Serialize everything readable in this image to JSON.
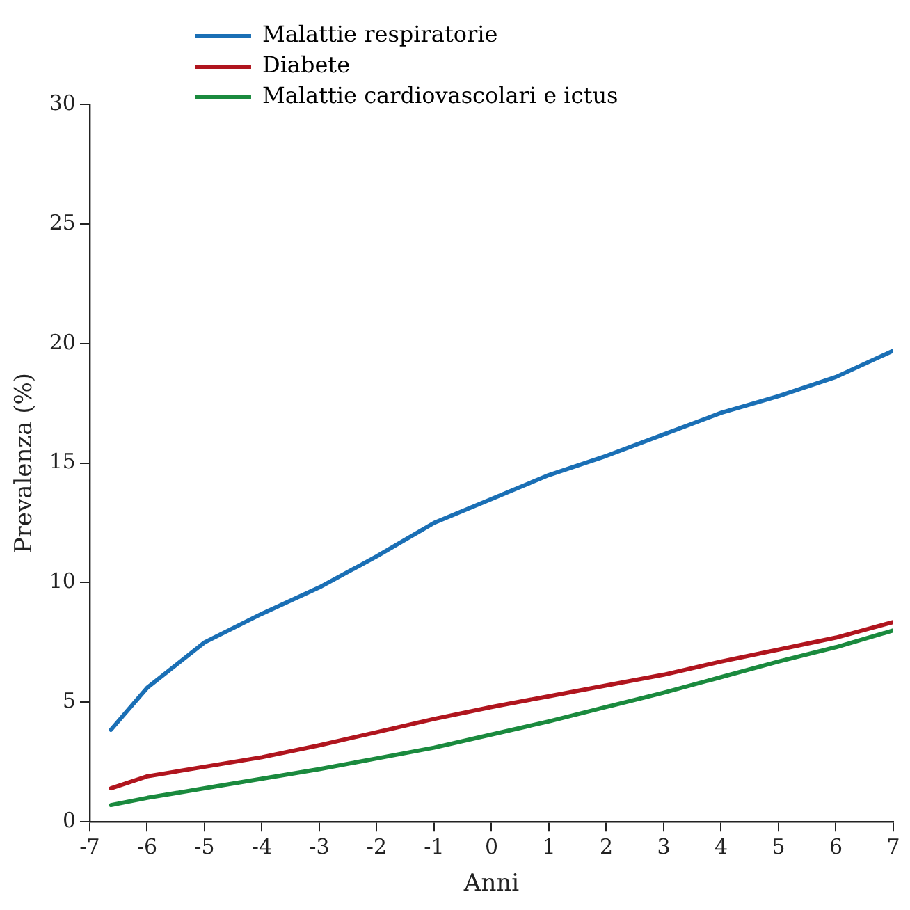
{
  "chart_data": {
    "type": "line",
    "xlabel": "Anni",
    "ylabel": "Prevalenza (%)",
    "x": [
      -6.63,
      -6,
      -5,
      -4,
      -3,
      -2,
      -1,
      0,
      1,
      2,
      3,
      4,
      5,
      6,
      7
    ],
    "series": [
      {
        "name": "Malattie respiratorie",
        "color": "#1a6fb5",
        "values": [
          3.85,
          5.6,
          7.5,
          8.7,
          9.8,
          11.1,
          12.5,
          13.5,
          14.5,
          15.3,
          16.2,
          17.1,
          17.8,
          18.6,
          19.7
        ]
      },
      {
        "name": "Diabete",
        "color": "#b0151e",
        "values": [
          1.4,
          1.9,
          2.3,
          2.7,
          3.2,
          3.75,
          4.3,
          4.8,
          5.25,
          5.7,
          6.15,
          6.7,
          7.2,
          7.7,
          8.35
        ]
      },
      {
        "name": "Malattie cardiovascolari e ictus",
        "color": "#1a8a3e",
        "values": [
          0.7,
          1.0,
          1.4,
          1.8,
          2.2,
          2.65,
          3.1,
          3.65,
          4.2,
          4.8,
          5.4,
          6.05,
          6.7,
          7.3,
          8.0
        ]
      }
    ],
    "xlim": [
      -7,
      7
    ],
    "xticks": [
      -7,
      -6,
      -5,
      -4,
      -3,
      -2,
      -1,
      0,
      1,
      2,
      3,
      4,
      5,
      6,
      7
    ],
    "ylim": [
      0,
      30
    ],
    "yticks": [
      0,
      5,
      10,
      15,
      20,
      25,
      30
    ],
    "grid": false,
    "legend": "top left",
    "marker": "none",
    "line_style": "solid"
  }
}
